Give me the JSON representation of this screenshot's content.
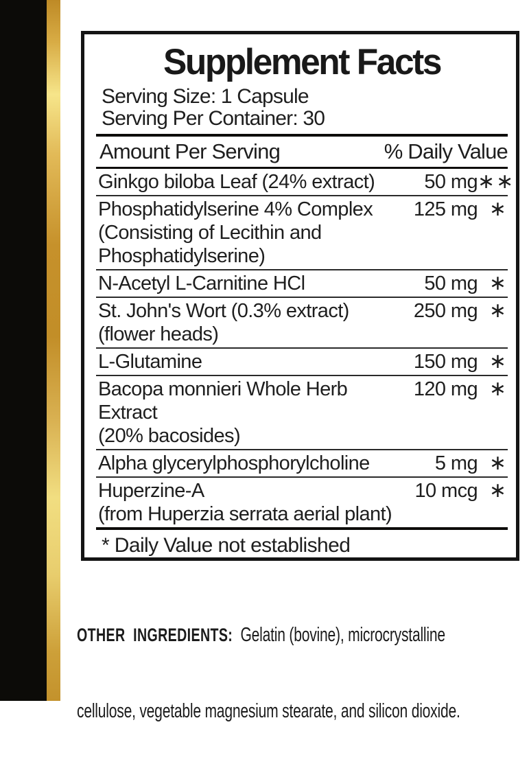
{
  "colors": {
    "black_bar": "#0c0b08",
    "gold_dark": "#c3922c",
    "gold_light": "#f6e58a",
    "panel_border": "#141414",
    "text": "#1e1e1e"
  },
  "panel": {
    "title": "Supplement Facts",
    "serving_size": "Serving Size: 1 Capsule",
    "serving_per_container": "Serving Per Container: 30",
    "columns": {
      "amount": "Amount Per Serving",
      "daily_value": "% Daily Value"
    },
    "rows": [
      {
        "name": [
          "Ginkgo biloba Leaf (24% extract)"
        ],
        "amount": "50 mg",
        "dv": "∗∗"
      },
      {
        "name": [
          "Phosphatidylserine 4% Complex",
          "(Consisting of Lecithin and",
          "Phosphatidylserine)"
        ],
        "amount": "125 mg",
        "dv": "∗"
      },
      {
        "name": [
          "N-Acetyl L-Carnitine HCl"
        ],
        "amount": "50 mg",
        "dv": "∗"
      },
      {
        "name": [
          "St. John's Wort (0.3% extract)",
          "(flower heads)"
        ],
        "amount": "250 mg",
        "dv": "∗"
      },
      {
        "name": [
          "L-Glutamine"
        ],
        "amount": "150 mg",
        "dv": "∗"
      },
      {
        "name": [
          "Bacopa monnieri Whole Herb Extract",
          "(20% bacosides)"
        ],
        "amount": "120 mg",
        "dv": "∗"
      },
      {
        "name": [
          "Alpha glycerylphosphorylcholine"
        ],
        "amount": "5 mg",
        "dv": "∗"
      },
      {
        "name": [
          "Huperzine-A",
          "(from Huperzia serrata aerial plant)"
        ],
        "amount": "10 mcg",
        "dv": "∗"
      }
    ],
    "footnote": "* Daily Value not established"
  },
  "other_ingredients": {
    "label": "OTHER  INGREDIENTS:",
    "line1_rest": "  Gelatin (bovine), microcrystalline",
    "line2": "cellulose, vegetable magnesium stearate, and silicon dioxide."
  }
}
